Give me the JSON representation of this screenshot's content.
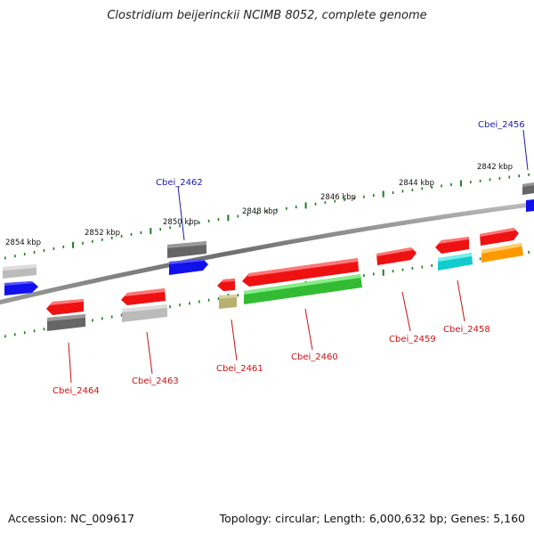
{
  "title": "Clostridium beijerinckii NCIMB 8052, complete genome",
  "footer": {
    "accession": "Accession: NC_009617",
    "summary": "Topology: circular; Length: 6,000,632 bp; Genes: 5,160"
  },
  "ruler_labels": [
    {
      "text": "2854 kbp",
      "kbp": 2854
    },
    {
      "text": "2852 kbp",
      "kbp": 2852
    },
    {
      "text": "2850 kbp",
      "kbp": 2850
    },
    {
      "text": "2848 kbp",
      "kbp": 2848
    },
    {
      "text": "2846 kbp",
      "kbp": 2846
    },
    {
      "text": "2844 kbp",
      "kbp": 2844
    },
    {
      "text": "2842 kbp",
      "kbp": 2842
    }
  ],
  "gene_labels": [
    {
      "text": "Cbei_2456",
      "color": "#1a1aaa"
    },
    {
      "text": "Cbei_2462",
      "color": "#1a1aaa"
    },
    {
      "text": "Cbei_2464",
      "color": "#cc1111"
    },
    {
      "text": "Cbei_2463",
      "color": "#cc1111"
    },
    {
      "text": "Cbei_2461",
      "color": "#cc1111"
    },
    {
      "text": "Cbei_2460",
      "color": "#cc1111"
    },
    {
      "text": "Cbei_2459",
      "color": "#cc1111"
    },
    {
      "text": "Cbei_2458",
      "color": "#cc1111"
    }
  ],
  "colors": {
    "backbone": "#777777",
    "tick": "#1e7a1e",
    "red": "#ee1111",
    "blue": "#1111ee",
    "green": "#33bb33",
    "gray": "#666666",
    "lightgray": "#bbbbbb",
    "khaki": "#b8b070",
    "cyan": "#11cccc",
    "orange": "#ff9900"
  }
}
